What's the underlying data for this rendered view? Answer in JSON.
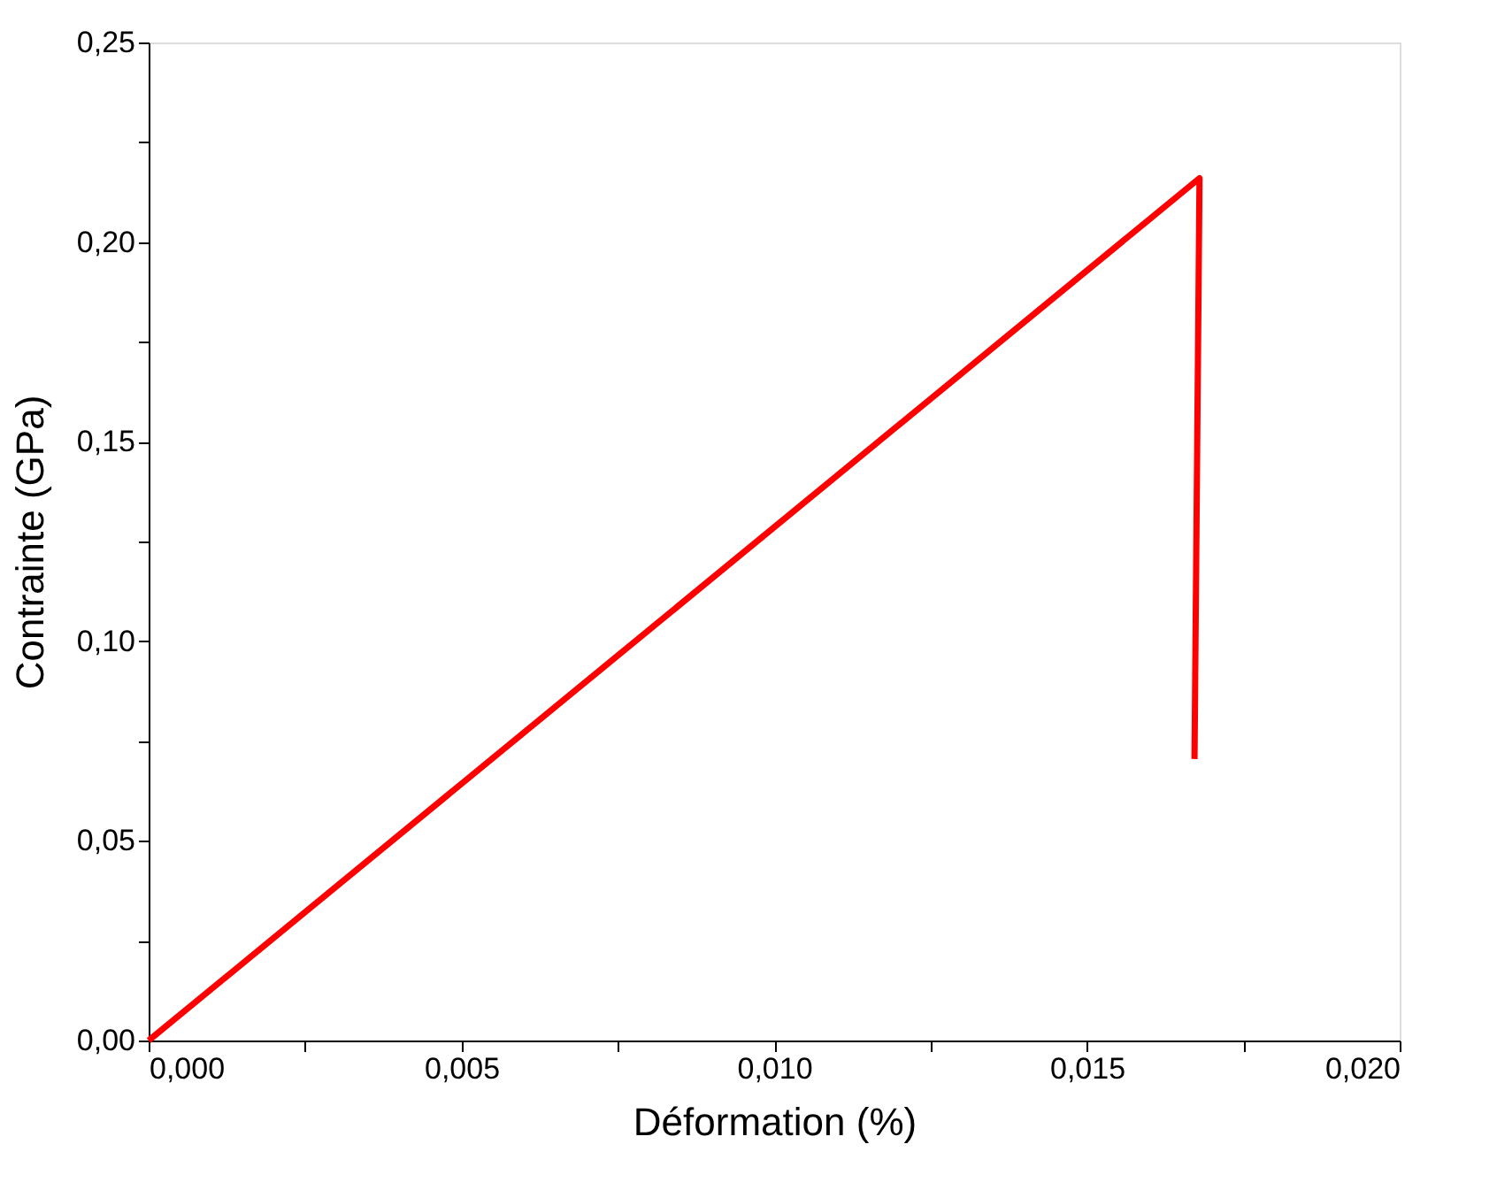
{
  "chart_data": {
    "type": "line",
    "xlabel": "Déformation (%)",
    "ylabel": "Contrainte (GPa)",
    "x": [
      0,
      0.0168,
      0.01672
    ],
    "series": [
      {
        "color": "#ff0000",
        "values": [
          0,
          0.216,
          0.0705
        ]
      }
    ],
    "xlim": [
      0,
      0.02
    ],
    "xticks": [
      {
        "value": 0,
        "label": "0,000"
      },
      {
        "value": 0.0025,
        "label": null
      },
      {
        "value": 0.005,
        "label": "0,005"
      },
      {
        "value": 0.0075,
        "label": null
      },
      {
        "value": 0.01,
        "label": "0,010"
      },
      {
        "value": 0.0125,
        "label": null
      },
      {
        "value": 0.015,
        "label": "0,015"
      },
      {
        "value": 0.0175,
        "label": null
      },
      {
        "value": 0.02,
        "label": "0,020"
      }
    ],
    "ylim": [
      0,
      0.25
    ],
    "yticks": [
      {
        "value": 0,
        "label": "0,00"
      },
      {
        "value": 0.025,
        "label": null
      },
      {
        "value": 0.05,
        "label": "0,05"
      },
      {
        "value": 0.075,
        "label": null
      },
      {
        "value": 0.1,
        "label": "0,10"
      },
      {
        "value": 0.125,
        "label": null
      },
      {
        "value": 0.15,
        "label": "0,15"
      },
      {
        "value": 0.175,
        "label": null
      },
      {
        "value": 0.2,
        "label": "0,20"
      },
      {
        "value": 0.225,
        "label": null
      },
      {
        "value": 0.25,
        "label": "0,25"
      }
    ],
    "grid": false,
    "marker": "none",
    "line_style": "solid"
  }
}
